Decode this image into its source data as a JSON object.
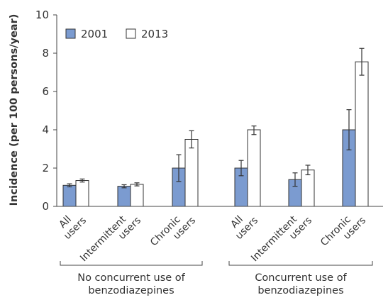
{
  "chart_data": {
    "type": "bar",
    "ylabel": "Incidence (per 100 persons/year)",
    "ylim": [
      0,
      10
    ],
    "yticks": [
      "0",
      "2",
      "4",
      "6",
      "8",
      "10"
    ],
    "legend_position": "top-left",
    "series": [
      {
        "name": "2001",
        "color": "#7b9bd0",
        "values": [
          1.1,
          1.05,
          2.0,
          2.0,
          1.4,
          4.0
        ],
        "err_low": [
          0.08,
          0.08,
          0.7,
          0.4,
          0.35,
          1.05
        ],
        "err_high": [
          0.08,
          0.08,
          0.7,
          0.4,
          0.35,
          1.05
        ]
      },
      {
        "name": "2013",
        "color": "#ffffff",
        "values": [
          1.35,
          1.15,
          3.5,
          4.0,
          1.9,
          7.55
        ],
        "err_low": [
          0.08,
          0.08,
          0.45,
          0.25,
          0.25,
          0.7
        ],
        "err_high": [
          0.08,
          0.08,
          0.45,
          0.2,
          0.25,
          0.7
        ]
      }
    ],
    "categories": [
      [
        "All",
        "users"
      ],
      [
        "Intermittent",
        "users"
      ],
      [
        "Chronic",
        "users"
      ],
      [
        "All",
        "users"
      ],
      [
        "Intermittent",
        "users"
      ],
      [
        "Chronic",
        "users"
      ]
    ],
    "groups": [
      {
        "lines": [
          "No concurrent use of",
          "benzodiazepines"
        ]
      },
      {
        "lines": [
          "Concurrent use of",
          "benzodiazepines"
        ]
      }
    ]
  }
}
